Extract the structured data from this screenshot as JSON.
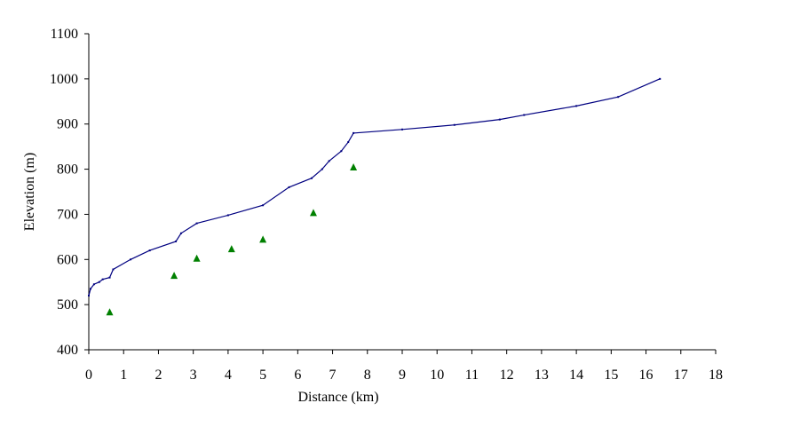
{
  "chart_data": {
    "type": "line",
    "title": "",
    "xlabel": "Distance (km)",
    "ylabel": "Elevation (m)",
    "xlim": [
      0,
      18
    ],
    "ylim": [
      400,
      1100
    ],
    "x_ticks": [
      "0",
      "1",
      "2",
      "3",
      "4",
      "5",
      "6",
      "7",
      "8",
      "9",
      "10",
      "11",
      "12",
      "13",
      "14",
      "15",
      "16",
      "17",
      "18"
    ],
    "y_ticks": [
      "400",
      "500",
      "600",
      "700",
      "800",
      "900",
      "1000",
      "1100"
    ],
    "grid": false,
    "legend": "none",
    "series": [
      {
        "type": "line",
        "color": "#000080",
        "points": [
          {
            "x": 0.0,
            "y": 520
          },
          {
            "x": 0.05,
            "y": 535
          },
          {
            "x": 0.15,
            "y": 545
          },
          {
            "x": 0.3,
            "y": 550
          },
          {
            "x": 0.4,
            "y": 556
          },
          {
            "x": 0.6,
            "y": 560
          },
          {
            "x": 0.7,
            "y": 578
          },
          {
            "x": 1.2,
            "y": 600
          },
          {
            "x": 1.75,
            "y": 620
          },
          {
            "x": 2.5,
            "y": 640
          },
          {
            "x": 2.65,
            "y": 658
          },
          {
            "x": 3.1,
            "y": 680
          },
          {
            "x": 4.0,
            "y": 698
          },
          {
            "x": 5.0,
            "y": 720
          },
          {
            "x": 5.75,
            "y": 760
          },
          {
            "x": 6.4,
            "y": 780
          },
          {
            "x": 6.7,
            "y": 800
          },
          {
            "x": 6.9,
            "y": 818
          },
          {
            "x": 7.25,
            "y": 840
          },
          {
            "x": 7.45,
            "y": 860
          },
          {
            "x": 7.6,
            "y": 880
          },
          {
            "x": 9.0,
            "y": 888
          },
          {
            "x": 10.5,
            "y": 898
          },
          {
            "x": 11.8,
            "y": 910
          },
          {
            "x": 12.5,
            "y": 920
          },
          {
            "x": 14.0,
            "y": 940
          },
          {
            "x": 15.2,
            "y": 960
          },
          {
            "x": 16.4,
            "y": 1000
          }
        ]
      },
      {
        "type": "scatter",
        "marker": "triangle",
        "color": "#008000",
        "points": [
          {
            "x": 0.6,
            "y": 483
          },
          {
            "x": 2.45,
            "y": 564
          },
          {
            "x": 3.1,
            "y": 602
          },
          {
            "x": 4.1,
            "y": 623
          },
          {
            "x": 5.0,
            "y": 644
          },
          {
            "x": 6.45,
            "y": 703
          },
          {
            "x": 7.6,
            "y": 804
          }
        ]
      }
    ]
  }
}
